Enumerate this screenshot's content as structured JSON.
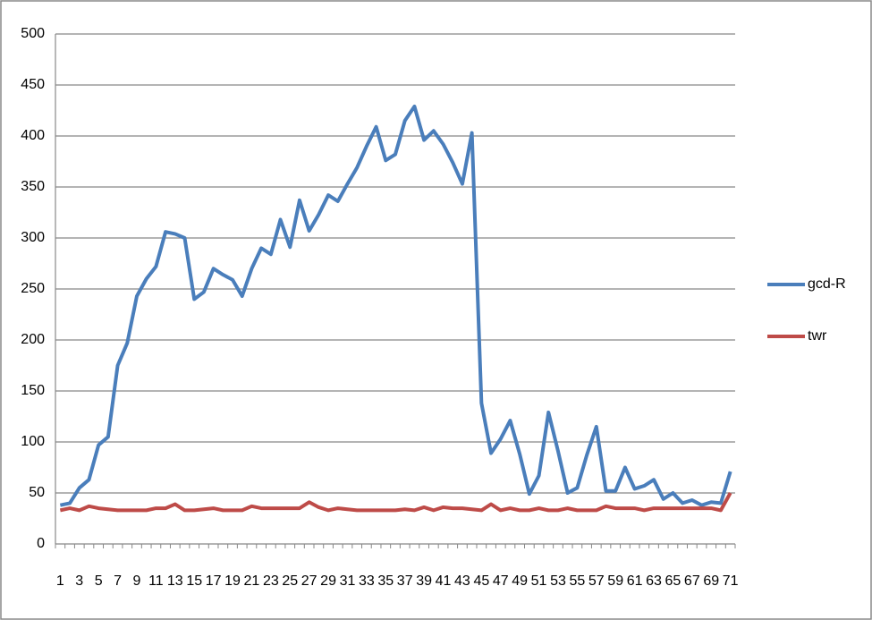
{
  "chart_data": {
    "type": "line",
    "categories": [
      1,
      null,
      3,
      null,
      5,
      null,
      7,
      null,
      9,
      null,
      11,
      null,
      13,
      null,
      15,
      null,
      17,
      null,
      19,
      null,
      21,
      null,
      23,
      null,
      25,
      null,
      27,
      null,
      29,
      null,
      31,
      null,
      33,
      null,
      35,
      null,
      37,
      null,
      39,
      null,
      41,
      null,
      43,
      null,
      45,
      null,
      47,
      null,
      49,
      null,
      51,
      null,
      53,
      null,
      55,
      null,
      57,
      null,
      59,
      null,
      61,
      null,
      63,
      null,
      65,
      null,
      67,
      null,
      69,
      null,
      71
    ],
    "series": [
      {
        "name": "gcd-R",
        "color": "#4a7ebb",
        "values": [
          38,
          40,
          55,
          63,
          97,
          105,
          175,
          197,
          243,
          260,
          272,
          306,
          304,
          300,
          240,
          247,
          270,
          264,
          259,
          243,
          270,
          290,
          284,
          318,
          291,
          337,
          307,
          323,
          342,
          336,
          353,
          369,
          390,
          409,
          376,
          382,
          415,
          429,
          396,
          405,
          392,
          374,
          353,
          403,
          138,
          89,
          103,
          121,
          88,
          49,
          67,
          129,
          91,
          50,
          55,
          87,
          115,
          52,
          52,
          75,
          54,
          57,
          63,
          44,
          50,
          40,
          43,
          38,
          41,
          40,
          71
        ]
      },
      {
        "name": "twr",
        "color": "#be4b48",
        "values": [
          33,
          35,
          33,
          37,
          35,
          34,
          33,
          33,
          33,
          33,
          35,
          35,
          39,
          33,
          33,
          34,
          35,
          33,
          33,
          33,
          37,
          35,
          35,
          35,
          35,
          35,
          41,
          36,
          33,
          35,
          34,
          33,
          33,
          33,
          33,
          33,
          34,
          33,
          36,
          33,
          36,
          35,
          35,
          34,
          33,
          39,
          33,
          35,
          33,
          33,
          35,
          33,
          33,
          35,
          33,
          33,
          33,
          37,
          35,
          35,
          35,
          33,
          35,
          35,
          35,
          35,
          35,
          35,
          35,
          33,
          50
        ]
      }
    ],
    "ylim": [
      0,
      500
    ],
    "yticks": [
      0,
      50,
      100,
      150,
      200,
      250,
      300,
      350,
      400,
      450,
      500
    ],
    "grid": true,
    "legend": "right"
  }
}
